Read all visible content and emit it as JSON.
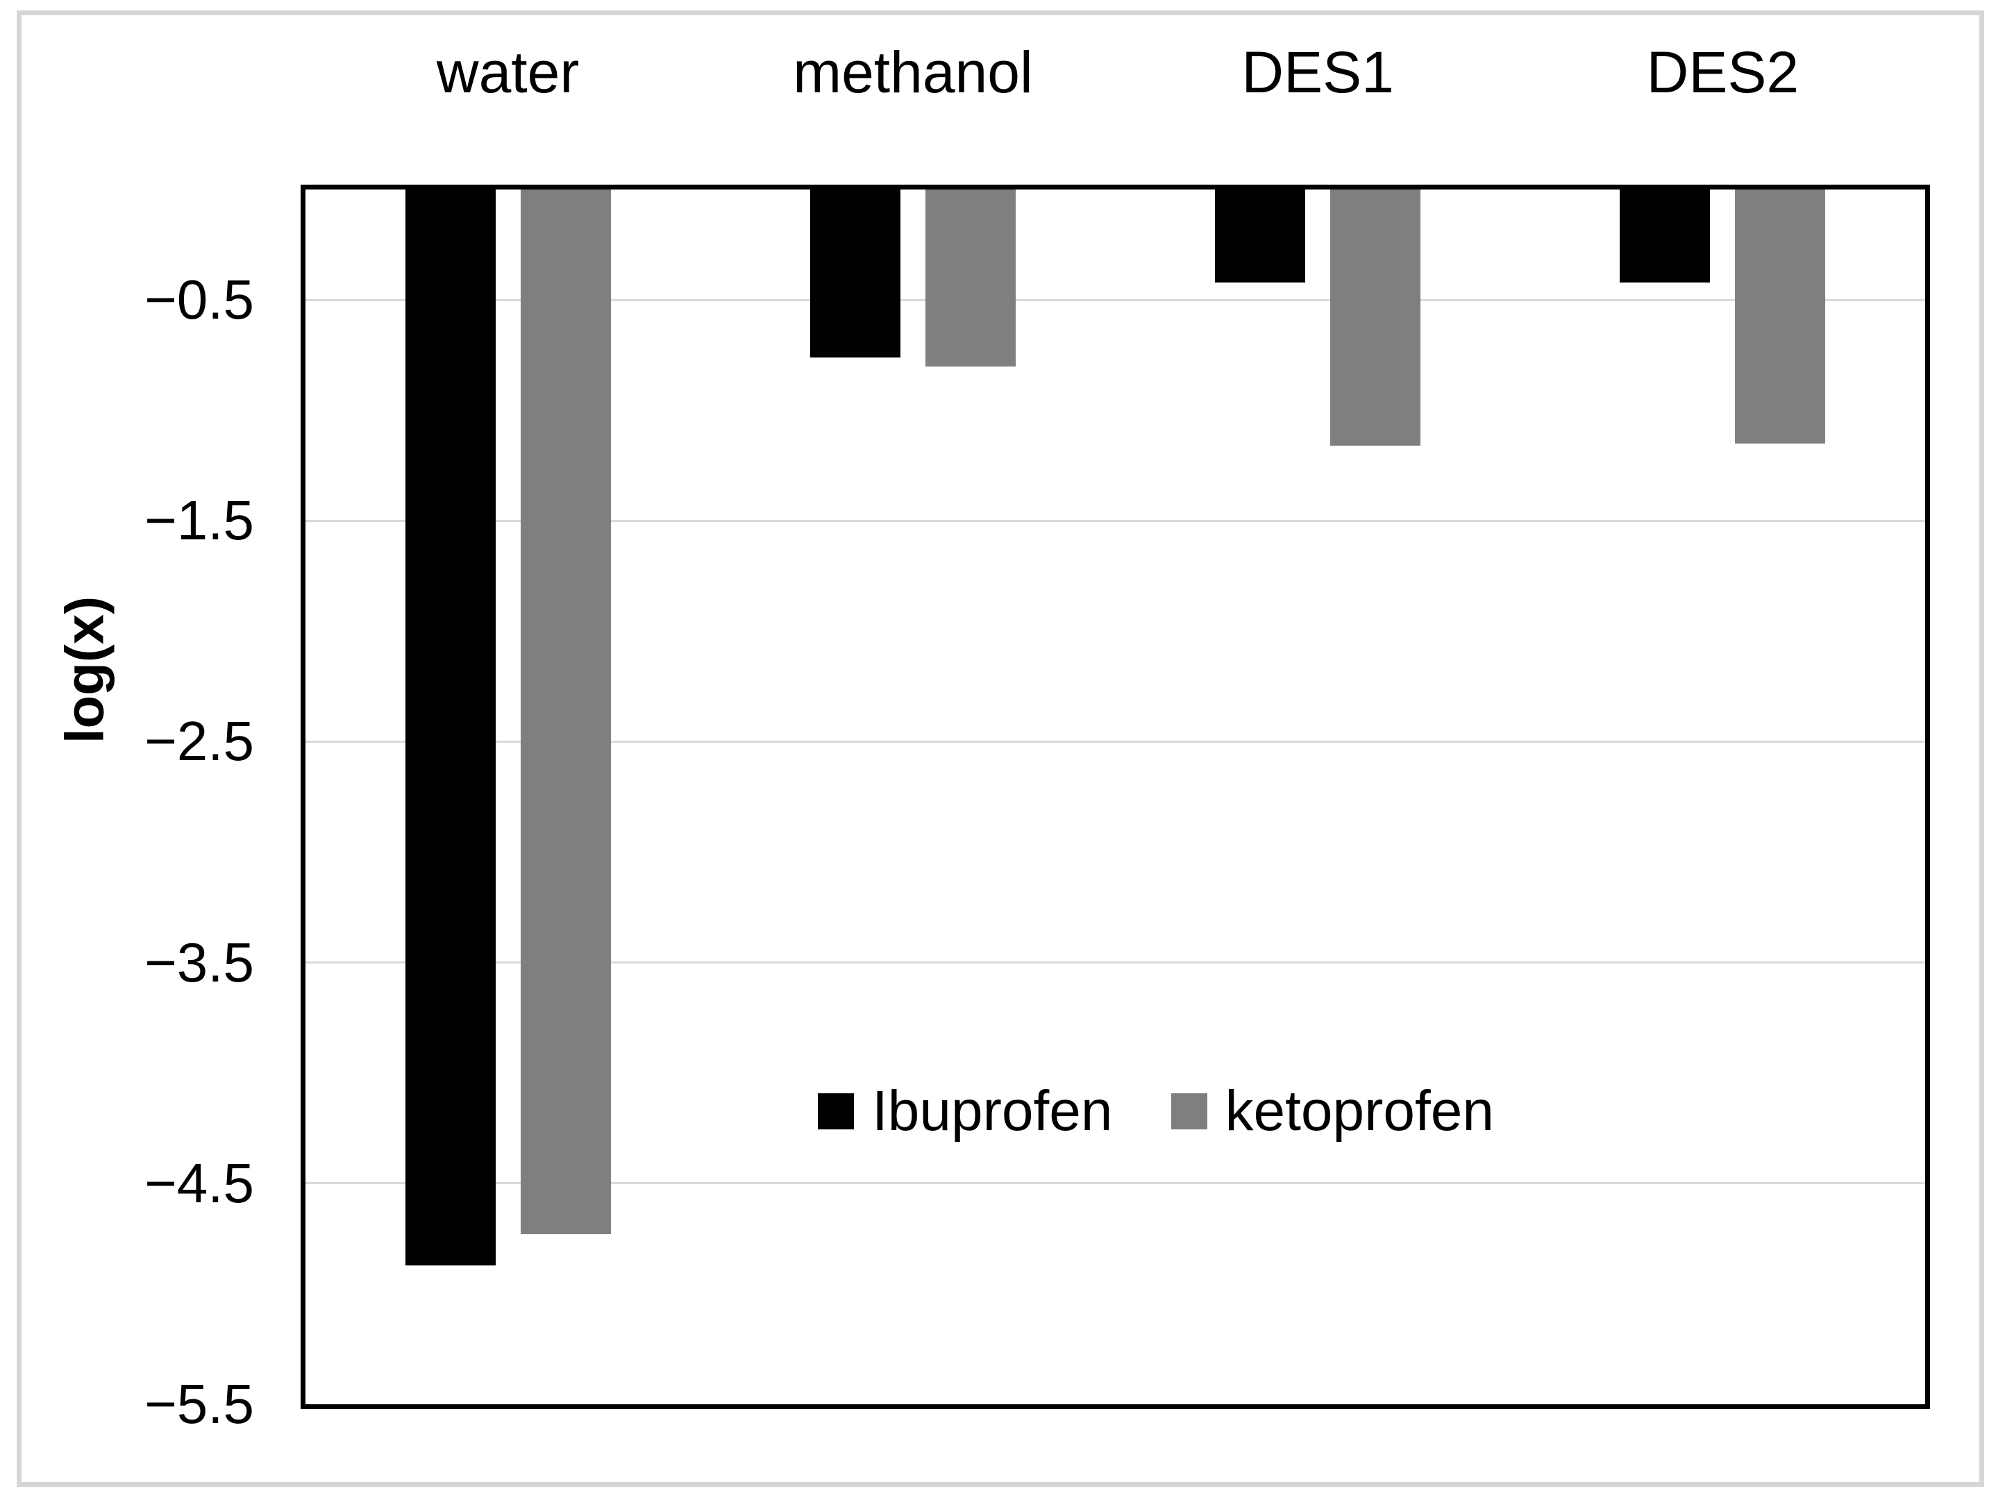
{
  "figure": {
    "background": "#ffffff",
    "border_color": "#d6d6d6"
  },
  "chart_data": {
    "type": "bar",
    "title": "",
    "xlabel": "",
    "ylabel": "log(x)",
    "categories": [
      "water",
      "methanol",
      "DES1",
      "DES2"
    ],
    "series": [
      {
        "name": "Ibuprofen",
        "color": "#000000",
        "values": [
          -4.87,
          -0.76,
          -0.42,
          -0.42
        ]
      },
      {
        "name": "ketoprofen",
        "color": "#7f7f7f",
        "values": [
          -4.73,
          -0.8,
          -1.16,
          -1.15
        ]
      }
    ],
    "ylim": [
      -5.5,
      0
    ],
    "y_ticks": [
      -0.5,
      -1.5,
      -2.5,
      -3.5,
      -4.5,
      -5.5
    ],
    "y_tick_labels": [
      "−0.5",
      "−1.5",
      "−2.5",
      "−3.5",
      "−4.5",
      "−5.5"
    ],
    "grid": true,
    "gridline_color": "#d9d9d9",
    "axis_color": "#000000",
    "legend_position": "inside-lower-center",
    "bar_orientation": "vertical-downward"
  },
  "legend": {
    "items": [
      {
        "label": "Ibuprofen",
        "color": "#000000"
      },
      {
        "label": "ketoprofen",
        "color": "#7f7f7f"
      }
    ]
  }
}
